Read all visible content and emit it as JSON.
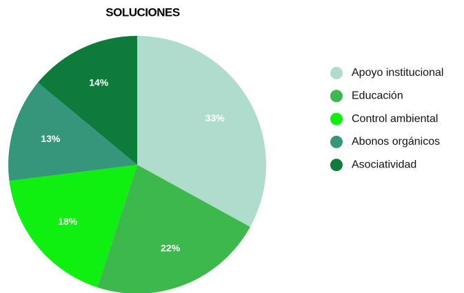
{
  "chart_data": {
    "type": "pie",
    "title": "SOLUCIONES",
    "categories": [
      "Apoyo institucional",
      "Educación",
      "Control ambiental",
      "Abonos orgánicos",
      "Asociatividad"
    ],
    "values": [
      33,
      22,
      18,
      13,
      14
    ],
    "value_labels": [
      "33%",
      "22%",
      "18%",
      "13%",
      "14%"
    ],
    "colors": [
      "#afdccd",
      "#3db84c",
      "#0ff010",
      "#36967c",
      "#0d7b3a"
    ],
    "legend": "right"
  }
}
